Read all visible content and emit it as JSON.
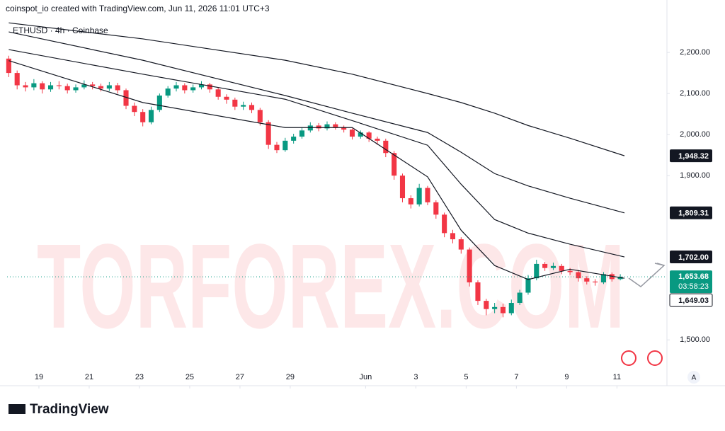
{
  "header": "coinspot_io created with TradingView.com, Jun 11, 2026 11:01 UTC+3",
  "footer_logo": "TradingView",
  "corner_button": "A",
  "chart_data": {
    "type": "candlestick",
    "symbol": "ETHUSD · 4h · Coinbase",
    "watermark": "TORFOREX.COM",
    "up_color": "#089981",
    "down_color": "#f23645",
    "grid": false,
    "ylim": [
      1397,
      2276
    ],
    "yticks": [
      {
        "value": 2200,
        "label": "2,200.00"
      },
      {
        "value": 2100,
        "label": "2,100.00"
      },
      {
        "value": 2000,
        "label": "2,000.00"
      },
      {
        "value": 1900,
        "label": "1,900.00"
      },
      {
        "value": 1500,
        "label": "1,500.00"
      }
    ],
    "xlim": [
      -0.2,
      78.4
    ],
    "xticks": [
      {
        "value": 3.6,
        "label": "19"
      },
      {
        "value": 9.6,
        "label": "21"
      },
      {
        "value": 15.6,
        "label": "23"
      },
      {
        "value": 21.6,
        "label": "25"
      },
      {
        "value": 27.6,
        "label": "27"
      },
      {
        "value": 33.6,
        "label": "29"
      },
      {
        "value": 42.6,
        "label": "Jun"
      },
      {
        "value": 48.6,
        "label": "3"
      },
      {
        "value": 54.6,
        "label": "5"
      },
      {
        "value": 60.6,
        "label": "7"
      },
      {
        "value": 66.6,
        "label": "9"
      },
      {
        "value": 72.6,
        "label": "11"
      }
    ],
    "open": [
      2185,
      2150,
      2120,
      2115,
      2125,
      2110,
      2120,
      2118,
      2108,
      2115,
      2122,
      2118,
      2112,
      2120,
      2108,
      2070,
      2055,
      2030,
      2060,
      2095,
      2112,
      2120,
      2108,
      2115,
      2122,
      2110,
      2092,
      2085,
      2068,
      2072,
      2060,
      2030,
      1975,
      1962,
      1985,
      1995,
      2010,
      2022,
      2015,
      2025,
      2018,
      2012,
      1995,
      2005,
      1990,
      1985,
      1955,
      1900,
      1845,
      1830,
      1870,
      1835,
      1805,
      1760,
      1745,
      1720,
      1640,
      1595,
      1575,
      1580,
      1565,
      1590,
      1615,
      1650,
      1685,
      1675,
      1680,
      1668,
      1665,
      1650,
      1642,
      1640,
      1660,
      1648
    ],
    "high": [
      2192,
      2156,
      2128,
      2135,
      2130,
      2128,
      2130,
      2124,
      2122,
      2132,
      2128,
      2124,
      2128,
      2126,
      2112,
      2078,
      2062,
      2068,
      2100,
      2118,
      2128,
      2125,
      2122,
      2130,
      2126,
      2115,
      2098,
      2090,
      2080,
      2078,
      2065,
      2035,
      1982,
      1992,
      2002,
      2018,
      2030,
      2028,
      2032,
      2030,
      2022,
      2015,
      2010,
      2008,
      1995,
      1990,
      1960,
      1905,
      1852,
      1880,
      1875,
      1840,
      1810,
      1768,
      1750,
      1725,
      1645,
      1600,
      1590,
      1588,
      1598,
      1622,
      1658,
      1695,
      1690,
      1688,
      1685,
      1675,
      1670,
      1655,
      1648,
      1665,
      1664,
      1660
    ],
    "low": [
      2140,
      2110,
      2105,
      2108,
      2100,
      2104,
      2110,
      2100,
      2102,
      2110,
      2110,
      2105,
      2106,
      2100,
      2062,
      2045,
      2020,
      2025,
      2055,
      2090,
      2105,
      2100,
      2102,
      2110,
      2102,
      2085,
      2075,
      2060,
      2060,
      2052,
      2022,
      1965,
      1955,
      1958,
      1978,
      1990,
      2005,
      2008,
      2010,
      2012,
      2005,
      1988,
      1990,
      1982,
      1975,
      1945,
      1890,
      1835,
      1820,
      1825,
      1828,
      1795,
      1750,
      1735,
      1710,
      1630,
      1585,
      1560,
      1565,
      1555,
      1560,
      1585,
      1610,
      1645,
      1668,
      1670,
      1660,
      1658,
      1642,
      1635,
      1632,
      1636,
      1642,
      1645
    ],
    "close": [
      2150,
      2120,
      2115,
      2125,
      2110,
      2120,
      2118,
      2108,
      2115,
      2122,
      2118,
      2112,
      2120,
      2108,
      2070,
      2055,
      2030,
      2060,
      2095,
      2112,
      2120,
      2108,
      2115,
      2122,
      2110,
      2092,
      2085,
      2068,
      2072,
      2060,
      2030,
      1975,
      1962,
      1985,
      1995,
      2010,
      2022,
      2015,
      2025,
      2018,
      2012,
      1995,
      2005,
      1990,
      1985,
      1955,
      1900,
      1845,
      1830,
      1870,
      1835,
      1805,
      1760,
      1745,
      1720,
      1640,
      1595,
      1575,
      1580,
      1565,
      1590,
      1615,
      1650,
      1685,
      1675,
      1680,
      1668,
      1665,
      1650,
      1642,
      1640,
      1660,
      1648,
      1653.68
    ],
    "lines": [
      {
        "color": "#131722",
        "x": [
          0,
          16,
          33,
          41,
          50,
          54,
          58,
          62,
          67,
          73.5
        ],
        "values": [
          2272,
          2233,
          2181,
          2147,
          2100,
          2078,
          2052,
          2022,
          1991,
          1948.32
        ]
      },
      {
        "color": "#131722",
        "x": [
          0,
          16,
          33,
          41,
          50,
          54,
          58,
          62,
          67,
          73.5
        ],
        "values": [
          2250,
          2181,
          2095,
          2052,
          2005,
          1957,
          1905,
          1875,
          1845,
          1809.31
        ]
      },
      {
        "color": "#131722",
        "x": [
          0,
          16,
          33,
          41,
          50,
          54,
          58,
          62,
          67,
          73.5
        ],
        "values": [
          2207,
          2147,
          2086,
          2034,
          1974,
          1879,
          1793,
          1760,
          1733,
          1702
        ]
      },
      {
        "color": "#131722",
        "x": [
          0,
          16,
          33,
          41,
          50,
          54,
          58,
          62,
          67,
          73.5
        ],
        "values": [
          2180,
          2078,
          2017,
          2017,
          1897,
          1767,
          1681,
          1647,
          1672,
          1650
        ]
      }
    ],
    "price_labels": [
      {
        "value": 1948.32,
        "label": "1,948.32",
        "color": "#131722"
      },
      {
        "value": 1809.31,
        "label": "1,809.31",
        "color": "#131722"
      },
      {
        "value": 1702,
        "label": "1,702.00",
        "color": "#131722"
      }
    ],
    "last_price": {
      "value": 1653.68,
      "label": "1,653.68",
      "countdown": "03:58:23",
      "color": "#089981"
    },
    "bid_label": {
      "value": 1649.03,
      "label": "1,649.03",
      "color": "#131722"
    }
  }
}
